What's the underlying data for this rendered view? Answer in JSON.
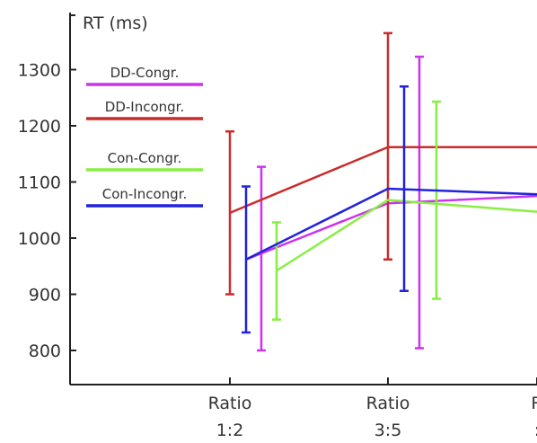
{
  "chart_data": {
    "type": "line",
    "ylabel": "RT (ms)",
    "xlabel": "",
    "ylim": [
      740,
      1420
    ],
    "yticks": [
      800,
      900,
      1000,
      1100,
      1200,
      1300
    ],
    "categories": [
      {
        "line1": "Ratio",
        "line2": "1:2"
      },
      {
        "line1": "Ratio",
        "line2": "3:5"
      },
      {
        "line1": "R",
        "line2": ":"
      }
    ],
    "series": [
      {
        "name": "DD-Congr.",
        "color": "#cc33ee",
        "values": [
          962,
          1062,
          1075
        ],
        "errors": [
          {
            "low": 800,
            "high": 1127
          },
          {
            "low": 804,
            "high": 1323
          }
        ]
      },
      {
        "name": "DD-Incongr.",
        "color": "#cc2b2b",
        "values": [
          1045,
          1162,
          1162
        ],
        "errors": [
          {
            "low": 900,
            "high": 1190
          },
          {
            "low": 962,
            "high": 1365
          }
        ]
      },
      {
        "name": "Con-Congr.",
        "color": "#88ee44",
        "values": [
          942,
          1068,
          1047
        ],
        "errors": [
          {
            "low": 855,
            "high": 1028
          },
          {
            "low": 892,
            "high": 1243
          }
        ]
      },
      {
        "name": "Con-Incongr.",
        "color": "#2222dd",
        "values": [
          962,
          1088,
          1078
        ],
        "errors": [
          {
            "low": 832,
            "high": 1092
          },
          {
            "low": 906,
            "high": 1270
          }
        ]
      }
    ],
    "legend_position": "top-left",
    "grid": false
  }
}
